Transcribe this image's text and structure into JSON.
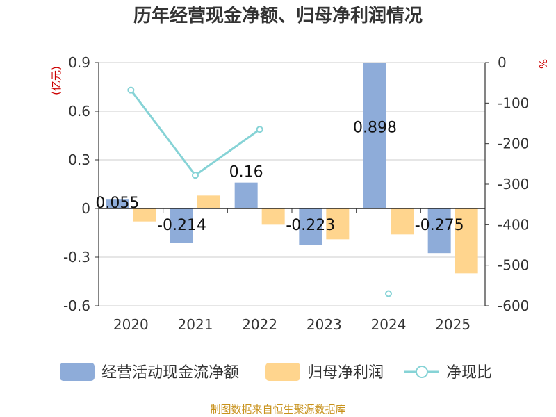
{
  "title": "历年经营现金净额、归母净利润情况",
  "footer": "制图数据来自恒生聚源数据库",
  "chart_data": {
    "type": "bar",
    "categories": [
      "2020",
      "2021",
      "2022",
      "2023",
      "2024",
      "2025"
    ],
    "series": [
      {
        "name": "经营活动现金流净额",
        "axis": "left",
        "type": "bar",
        "color": "#8eacd9",
        "values": [
          0.055,
          -0.214,
          0.16,
          -0.223,
          0.898,
          -0.275
        ],
        "labels": [
          "0.055",
          "-0.214",
          "0.16",
          "-0.223",
          "0.898",
          "-0.275"
        ]
      },
      {
        "name": "归母净利润",
        "axis": "left",
        "type": "bar",
        "color": "#ffd58e",
        "values": [
          -0.08,
          0.08,
          -0.1,
          -0.19,
          -0.16,
          -0.4
        ]
      },
      {
        "name": "净现比",
        "axis": "right",
        "type": "line",
        "color": "#86d3d6",
        "values": [
          -68,
          -278,
          -165,
          null,
          -570,
          null
        ]
      }
    ],
    "y_left": {
      "unit": "(亿元)",
      "min": -0.6,
      "max": 0.9,
      "ticks": [
        "0.9",
        "0.6",
        "0.3",
        "0",
        "-0.3",
        "-0.6"
      ]
    },
    "y_right": {
      "unit": "%",
      "min": -600,
      "max": 0,
      "ticks": [
        "0",
        "-100",
        "-200",
        "-300",
        "-400",
        "-500",
        "-600"
      ]
    },
    "grid": true,
    "legend": "bottom"
  }
}
